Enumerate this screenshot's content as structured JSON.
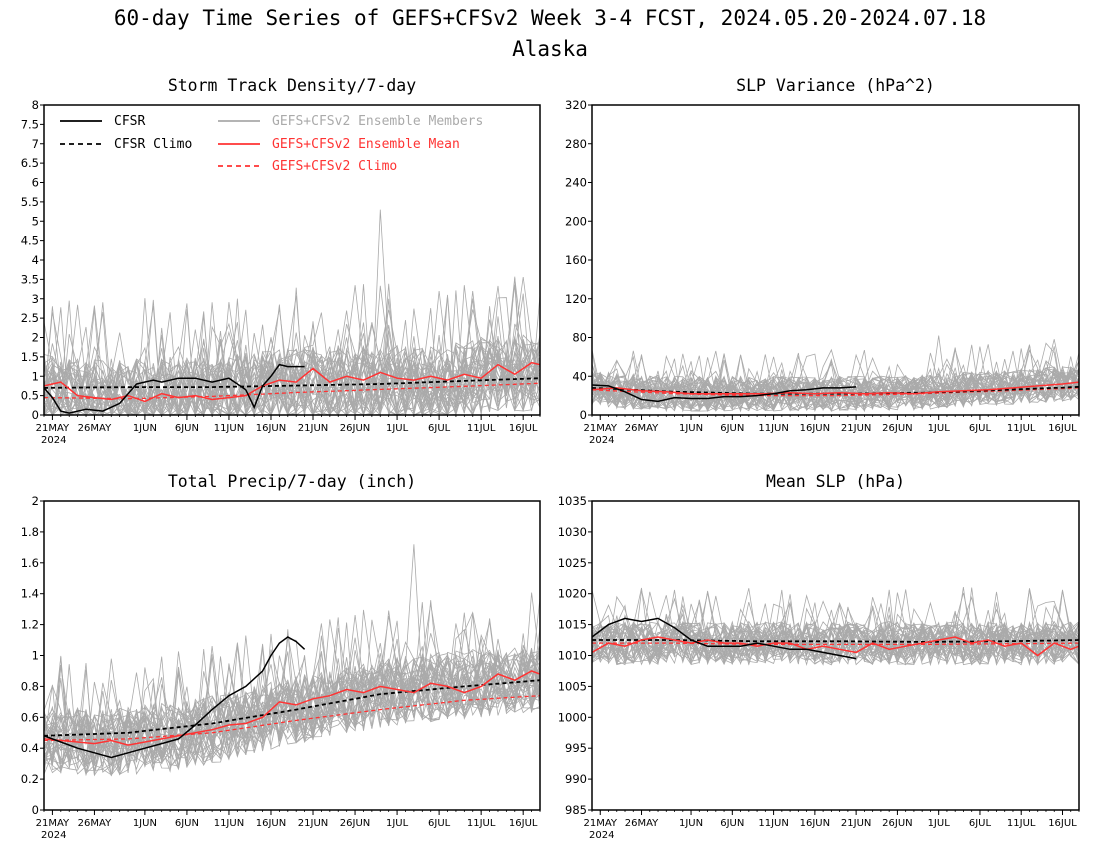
{
  "figure": {
    "title_line1": "60-day Time Series of GEFS+CFSv2 Week 3-4 FCST, 2024.05.20-2024.07.18",
    "title_line2": "Alaska"
  },
  "colors": {
    "cfsr": "#000000",
    "members": "#aaaaaa",
    "ens_mean": "#ff3333",
    "gefs_climo": "#ff3333"
  },
  "legend": {
    "cfsr": "CFSR",
    "cfsr_climo": "CFSR Climo",
    "members": "GEFS+CFSv2 Ensemble Members",
    "ens_mean": "GEFS+CFSv2 Ensemble Mean",
    "gefs_climo": "GEFS+CFSv2 Climo"
  },
  "x_axis": {
    "tick_labels": [
      "21MAY",
      "26MAY",
      "1JUN",
      "6JUN",
      "11JUN",
      "16JUN",
      "21JUN",
      "26JUN",
      "1JUL",
      "6JUL",
      "11JUL",
      "16JUL"
    ],
    "tick_days": [
      1,
      6,
      12,
      17,
      22,
      27,
      32,
      37,
      42,
      47,
      52,
      57
    ],
    "year_label": "2024",
    "day_range": [
      0,
      59
    ]
  },
  "chart_data": [
    {
      "type": "line",
      "title": "Storm Track Density/7-day",
      "ylim": [
        0,
        8
      ],
      "yticks": [
        0,
        0.5,
        1,
        1.5,
        2,
        2.5,
        3,
        3.5,
        4,
        4.5,
        5,
        5.5,
        6,
        6.5,
        7,
        7.5,
        8
      ],
      "ytick_labels": [
        "0",
        "0.5",
        "1",
        "1.5",
        "2",
        "2.5",
        "3",
        "3.5",
        "4",
        "4.5",
        "5",
        "5.5",
        "6",
        "6.5",
        "7",
        "7.5",
        "8"
      ],
      "members_band": {
        "mean": [
          0.6,
          0.55,
          0.5,
          0.45,
          0.45,
          0.45,
          0.45,
          0.45,
          0.45,
          0.45,
          0.45,
          0.45,
          0.5,
          0.5,
          0.5,
          0.5,
          0.5,
          0.5,
          0.5,
          0.5,
          0.5,
          0.5,
          0.5,
          0.55,
          0.6,
          0.6,
          0.65,
          0.7,
          0.7,
          0.75,
          0.75,
          0.8,
          0.8,
          0.8,
          0.8,
          0.8,
          0.8,
          0.8,
          0.8,
          0.8,
          0.8,
          0.8,
          0.8,
          0.8,
          0.8,
          0.8,
          0.8,
          0.85,
          0.85,
          0.9,
          0.9,
          0.95,
          1.0,
          1.0,
          1.05,
          1.05,
          1.1,
          1.1,
          1.1,
          1.1
        ],
        "spread": 1.0,
        "max_peak": 5.3
      },
      "ens_mean": {
        "x": [
          0,
          2,
          4,
          6,
          8,
          10,
          12,
          14,
          16,
          18,
          20,
          22,
          24,
          26,
          28,
          30,
          32,
          34,
          36,
          38,
          40,
          42,
          44,
          46,
          48,
          50,
          52,
          54,
          56,
          58,
          59
        ],
        "y": [
          0.75,
          0.85,
          0.5,
          0.45,
          0.4,
          0.5,
          0.35,
          0.55,
          0.45,
          0.5,
          0.4,
          0.45,
          0.5,
          0.75,
          0.9,
          0.85,
          1.2,
          0.85,
          1.0,
          0.9,
          1.1,
          0.95,
          0.9,
          1.0,
          0.9,
          1.05,
          0.95,
          1.3,
          1.05,
          1.35,
          1.3
        ]
      },
      "cfsr": {
        "x": [
          0,
          1,
          2,
          3,
          5,
          7,
          9,
          11,
          13,
          14,
          16,
          18,
          20,
          22,
          24,
          25,
          26,
          27,
          28,
          29,
          31
        ],
        "y": [
          0.7,
          0.45,
          0.1,
          0.05,
          0.15,
          0.1,
          0.3,
          0.8,
          0.9,
          0.85,
          0.95,
          0.95,
          0.85,
          0.95,
          0.65,
          0.2,
          0.75,
          1.0,
          1.3,
          1.25,
          1.25
        ]
      },
      "cfsr_climo": {
        "x": [
          0,
          10,
          20,
          30,
          40,
          50,
          59
        ],
        "y": [
          0.7,
          0.72,
          0.72,
          0.76,
          0.8,
          0.88,
          0.95
        ]
      },
      "gefs_climo": {
        "x": [
          0,
          10,
          20,
          30,
          40,
          50,
          59
        ],
        "y": [
          0.45,
          0.42,
          0.48,
          0.58,
          0.66,
          0.74,
          0.82
        ]
      }
    },
    {
      "type": "line",
      "title": "SLP Variance (hPa^2)",
      "ylim": [
        0,
        320
      ],
      "yticks": [
        0,
        40,
        80,
        120,
        160,
        200,
        240,
        280,
        320
      ],
      "ytick_labels": [
        "0",
        "40",
        "80",
        "120",
        "160",
        "200",
        "240",
        "280",
        "320"
      ],
      "members_band": {
        "mean": [
          28,
          27,
          26,
          25,
          24,
          24,
          23,
          23,
          23,
          22,
          22,
          22,
          22,
          22,
          22,
          22,
          22,
          22,
          22,
          22,
          22,
          22,
          22,
          22,
          22,
          22,
          22,
          22,
          22,
          22,
          22,
          22,
          22,
          22,
          22,
          23,
          23,
          23,
          23,
          23,
          24,
          24,
          25,
          25,
          26,
          26,
          27,
          27,
          28,
          28,
          29,
          29,
          30,
          30,
          31,
          31,
          32,
          32,
          33,
          33
        ],
        "spread": 18,
        "max_peak": 82
      },
      "ens_mean": {
        "x": [
          0,
          3,
          6,
          9,
          12,
          15,
          18,
          21,
          24,
          27,
          30,
          33,
          36,
          39,
          42,
          45,
          48,
          51,
          54,
          57,
          59
        ],
        "y": [
          26,
          28,
          25,
          24,
          22,
          22,
          22,
          22,
          23,
          22,
          23,
          22,
          23,
          22,
          24,
          25,
          26,
          28,
          30,
          32,
          34
        ]
      },
      "cfsr": {
        "x": [
          0,
          2,
          4,
          6,
          8,
          10,
          12,
          14,
          16,
          18,
          20,
          22,
          24,
          26,
          28,
          30,
          32
        ],
        "y": [
          31,
          30,
          24,
          16,
          14,
          18,
          17,
          17,
          19,
          19,
          20,
          22,
          25,
          26,
          28,
          28,
          29
        ]
      },
      "cfsr_climo": {
        "x": [
          0,
          10,
          20,
          30,
          40,
          50,
          59
        ],
        "y": [
          28,
          24,
          22,
          22,
          23,
          26,
          29
        ]
      },
      "gefs_climo": {
        "x": [
          0,
          10,
          20,
          30,
          40,
          50,
          59
        ],
        "y": [
          26,
          22,
          20,
          20,
          22,
          25,
          28
        ]
      }
    },
    {
      "type": "line",
      "title": "Total Precip/7-day (inch)",
      "ylim": [
        0,
        2
      ],
      "yticks": [
        0,
        0.2,
        0.4,
        0.6,
        0.8,
        1,
        1.2,
        1.4,
        1.6,
        1.8,
        2
      ],
      "ytick_labels": [
        "0",
        "0.2",
        "0.4",
        "0.6",
        "0.8",
        "1",
        "1.2",
        "1.4",
        "1.6",
        "1.8",
        "2"
      ],
      "members_band": {
        "mean": [
          0.45,
          0.45,
          0.45,
          0.45,
          0.45,
          0.44,
          0.44,
          0.44,
          0.44,
          0.44,
          0.45,
          0.45,
          0.46,
          0.46,
          0.47,
          0.47,
          0.48,
          0.49,
          0.5,
          0.51,
          0.52,
          0.53,
          0.54,
          0.55,
          0.57,
          0.58,
          0.6,
          0.61,
          0.63,
          0.64,
          0.65,
          0.66,
          0.67,
          0.68,
          0.69,
          0.7,
          0.71,
          0.72,
          0.73,
          0.74,
          0.75,
          0.76,
          0.77,
          0.78,
          0.78,
          0.79,
          0.79,
          0.8,
          0.8,
          0.81,
          0.81,
          0.82,
          0.82,
          0.83,
          0.83,
          0.84,
          0.84,
          0.85,
          0.85,
          0.85
        ],
        "spread": 0.22,
        "max_peak": 1.72
      },
      "ens_mean": {
        "x": [
          0,
          2,
          4,
          6,
          8,
          10,
          12,
          14,
          16,
          18,
          20,
          22,
          24,
          26,
          28,
          30,
          32,
          34,
          36,
          38,
          40,
          42,
          44,
          46,
          48,
          50,
          52,
          54,
          56,
          58,
          59
        ],
        "y": [
          0.46,
          0.45,
          0.44,
          0.43,
          0.45,
          0.42,
          0.44,
          0.46,
          0.48,
          0.5,
          0.52,
          0.55,
          0.56,
          0.6,
          0.7,
          0.68,
          0.72,
          0.74,
          0.78,
          0.76,
          0.8,
          0.78,
          0.76,
          0.82,
          0.8,
          0.76,
          0.8,
          0.88,
          0.84,
          0.9,
          0.88
        ]
      },
      "cfsr": {
        "x": [
          0,
          2,
          4,
          6,
          8,
          10,
          12,
          14,
          16,
          18,
          20,
          22,
          24,
          26,
          27,
          28,
          29,
          30,
          31
        ],
        "y": [
          0.48,
          0.44,
          0.4,
          0.37,
          0.34,
          0.37,
          0.4,
          0.43,
          0.46,
          0.55,
          0.65,
          0.74,
          0.8,
          0.9,
          1.0,
          1.08,
          1.12,
          1.09,
          1.04
        ]
      },
      "cfsr_climo": {
        "x": [
          0,
          10,
          20,
          30,
          40,
          50,
          59
        ],
        "y": [
          0.48,
          0.5,
          0.56,
          0.65,
          0.75,
          0.8,
          0.84
        ]
      },
      "gefs_climo": {
        "x": [
          0,
          10,
          20,
          30,
          40,
          50,
          59
        ],
        "y": [
          0.45,
          0.46,
          0.5,
          0.58,
          0.65,
          0.71,
          0.74
        ]
      }
    },
    {
      "type": "line",
      "title": "Mean SLP (hPa)",
      "ylim": [
        985,
        1035
      ],
      "yticks": [
        985,
        990,
        995,
        1000,
        1005,
        1010,
        1015,
        1020,
        1025,
        1030,
        1035
      ],
      "ytick_labels": [
        "985",
        "990",
        "995",
        "1000",
        "1005",
        "1010",
        "1015",
        "1020",
        "1025",
        "1030",
        "1035"
      ],
      "members_band": {
        "mean": [
          1012,
          1012,
          1012,
          1012,
          1012,
          1012,
          1012,
          1012,
          1012,
          1012,
          1012,
          1012,
          1012,
          1012,
          1012,
          1012,
          1012,
          1012,
          1012,
          1012,
          1012,
          1012,
          1012,
          1012,
          1012,
          1012,
          1012,
          1012,
          1012,
          1012,
          1012,
          1012,
          1012,
          1012,
          1012,
          1012,
          1012,
          1012,
          1012,
          1012,
          1012,
          1012,
          1012,
          1012,
          1012,
          1012,
          1012,
          1012,
          1012,
          1012,
          1012,
          1012,
          1012,
          1012,
          1012,
          1012,
          1012,
          1012,
          1012,
          1012
        ],
        "spread": 3.5,
        "max_peak": 1021
      },
      "ens_mean": {
        "x": [
          0,
          2,
          4,
          6,
          8,
          10,
          12,
          14,
          16,
          18,
          20,
          22,
          24,
          26,
          28,
          30,
          32,
          34,
          36,
          38,
          40,
          42,
          44,
          46,
          48,
          50,
          52,
          54,
          56,
          58,
          59
        ],
        "y": [
          1010.5,
          1012,
          1011.5,
          1012.5,
          1013,
          1012.5,
          1012,
          1012.5,
          1012,
          1012,
          1011.5,
          1012,
          1012,
          1011,
          1011.5,
          1011,
          1010.5,
          1012,
          1011,
          1011.5,
          1012,
          1012.5,
          1013,
          1012,
          1012.5,
          1011.5,
          1012,
          1010,
          1012,
          1011,
          1011.5
        ]
      },
      "cfsr": {
        "x": [
          0,
          2,
          4,
          6,
          8,
          10,
          12,
          14,
          16,
          18,
          20,
          22,
          24,
          26,
          28,
          30,
          32
        ],
        "y": [
          1013,
          1015,
          1016,
          1015.5,
          1016,
          1014.5,
          1012.5,
          1011.5,
          1011.5,
          1011.5,
          1012,
          1011.5,
          1011,
          1011,
          1010.5,
          1010,
          1009.5
        ]
      },
      "cfsr_climo": {
        "x": [
          0,
          10,
          20,
          30,
          40,
          50,
          59
        ],
        "y": [
          1012.5,
          1012.5,
          1012.3,
          1012.3,
          1012.2,
          1012.3,
          1012.5
        ]
      },
      "gefs_climo": {
        "x": [
          0,
          10,
          20,
          30,
          40,
          50,
          59
        ],
        "y": [
          1012,
          1012,
          1011.8,
          1011.8,
          1011.8,
          1011.9,
          1012
        ]
      }
    }
  ]
}
